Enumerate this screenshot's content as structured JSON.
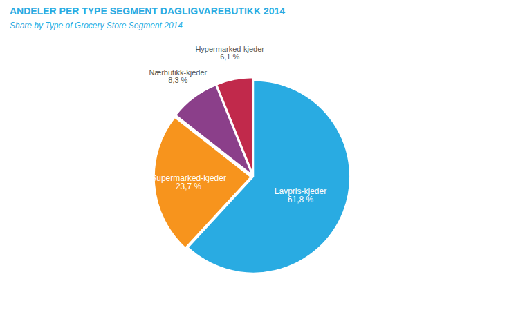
{
  "chart_data": {
    "type": "pie",
    "title": "ANDELER PER TYPE SEGMENT DAGLIGVAREBUTIKK 2014",
    "subtitle": "Share by Type of Grocery Store Segment 2014",
    "categories": [
      "Lavpris-kjeder",
      "Supermarked-kjeder",
      "Nærbutikk-kjeder",
      "Hypermarked-kjeder"
    ],
    "values": [
      61.8,
      23.7,
      8.3,
      6.1
    ],
    "value_labels": [
      "61,8 %",
      "23,7 %",
      "8,3 %",
      "6,1 %"
    ],
    "colors": [
      "#29ABE2",
      "#F7941D",
      "#8B3F8A",
      "#C1294B"
    ],
    "data_labels": true
  }
}
